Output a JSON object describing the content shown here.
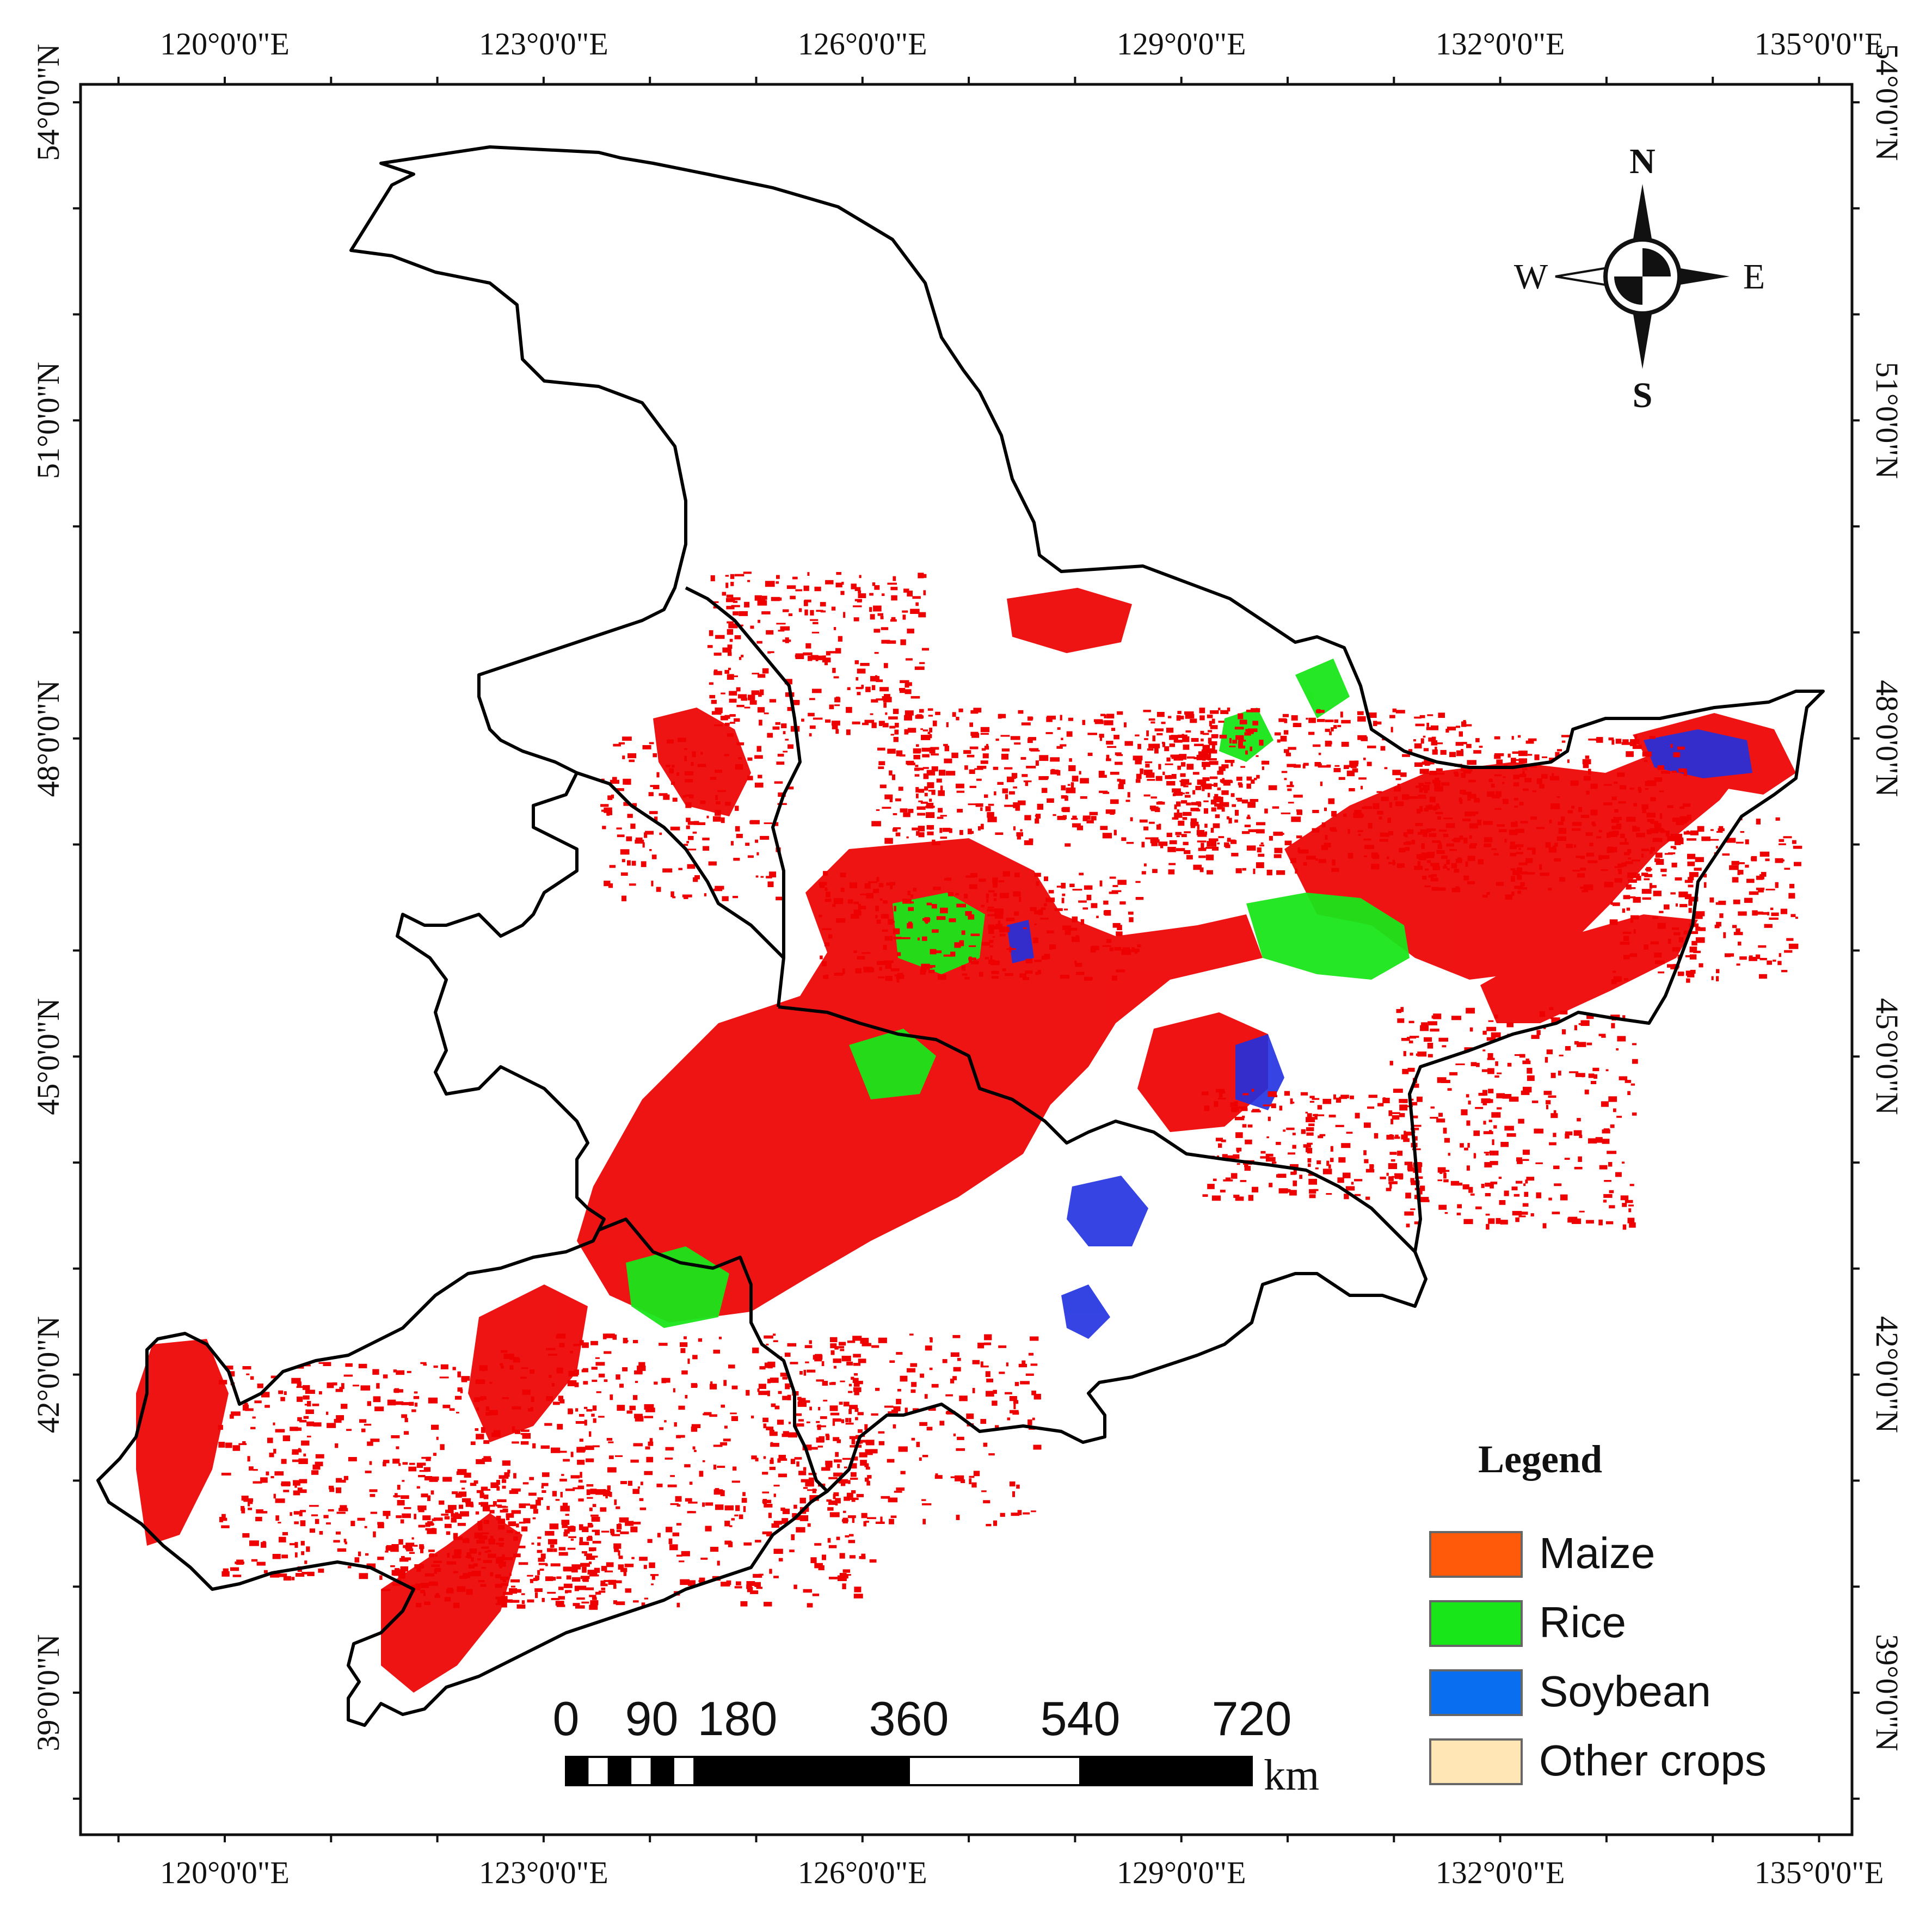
{
  "map": {
    "grid": {
      "longitudes": [
        {
          "value": 120,
          "label": "120°0'0\"E"
        },
        {
          "value": 123,
          "label": "123°0'0\"E"
        },
        {
          "value": 126,
          "label": "126°0'0\"E"
        },
        {
          "value": 129,
          "label": "129°0'0\"E"
        },
        {
          "value": 132,
          "label": "132°0'0\"E"
        },
        {
          "value": 135,
          "label": "135°0'0\"E"
        }
      ],
      "latitudes": [
        {
          "value": 54,
          "label": "54°0'0\"N"
        },
        {
          "value": 51,
          "label": "51°0'0\"N"
        },
        {
          "value": 48,
          "label": "48°0'0\"N"
        },
        {
          "value": 45,
          "label": "45°0'0\"N"
        },
        {
          "value": 42,
          "label": "42°0'0\"N"
        },
        {
          "value": 39,
          "label": "39°0'0\"N"
        }
      ]
    },
    "compass": {
      "north": "N",
      "south": "S",
      "east": "E",
      "west": "W"
    },
    "legend": {
      "title": "Legend",
      "items": [
        {
          "label": "Maize",
          "color": "#ff5a0a"
        },
        {
          "label": "Rice",
          "color": "#19e619"
        },
        {
          "label": "Soybean",
          "color": "#0a6ef0"
        },
        {
          "label": "Other crops",
          "color": "#ffe6b4"
        }
      ]
    },
    "scale_bar": {
      "ticks": [
        "0",
        "90",
        "180",
        "360",
        "540",
        "720"
      ],
      "tick_values_km": [
        0,
        90,
        180,
        360,
        540,
        720
      ],
      "unit": "km"
    },
    "colors": {
      "crop_dots_primary": "#ee0000",
      "boundary": "#000000"
    }
  }
}
